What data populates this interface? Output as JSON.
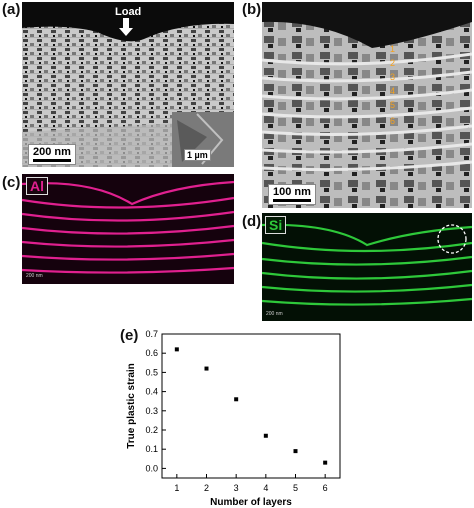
{
  "panels": {
    "a": {
      "label": "(a)",
      "load": "Load",
      "scale": "200 nm",
      "inset_scale": "1 µm"
    },
    "b": {
      "label": "(b)",
      "scale": "100 nm",
      "layers": [
        "1",
        "2",
        "3",
        "4",
        "5",
        "6"
      ]
    },
    "c": {
      "label": "(c)",
      "element": "Al",
      "scale": "200 nm"
    },
    "d": {
      "label": "(d)",
      "element": "Si",
      "scale": "200 nm"
    },
    "e": {
      "label": "(e)"
    }
  },
  "colors": {
    "al": "#e0208f",
    "si": "#2ec83a",
    "layer_numbers": "#f2a020"
  },
  "chart_data": {
    "type": "scatter",
    "x": [
      1,
      2,
      3,
      4,
      5,
      6
    ],
    "y": [
      0.62,
      0.52,
      0.36,
      0.17,
      0.09,
      0.03
    ],
    "xlabel": "Number of layers",
    "ylabel": "True plastic strain",
    "xlim": [
      0.5,
      6.5
    ],
    "ylim": [
      -0.05,
      0.7
    ],
    "xticks": [
      "1",
      "2",
      "3",
      "4",
      "5",
      "6"
    ],
    "yticks": [
      "0.0",
      "0.1",
      "0.2",
      "0.3",
      "0.4",
      "0.5",
      "0.6",
      "0.7"
    ],
    "grid": false
  }
}
